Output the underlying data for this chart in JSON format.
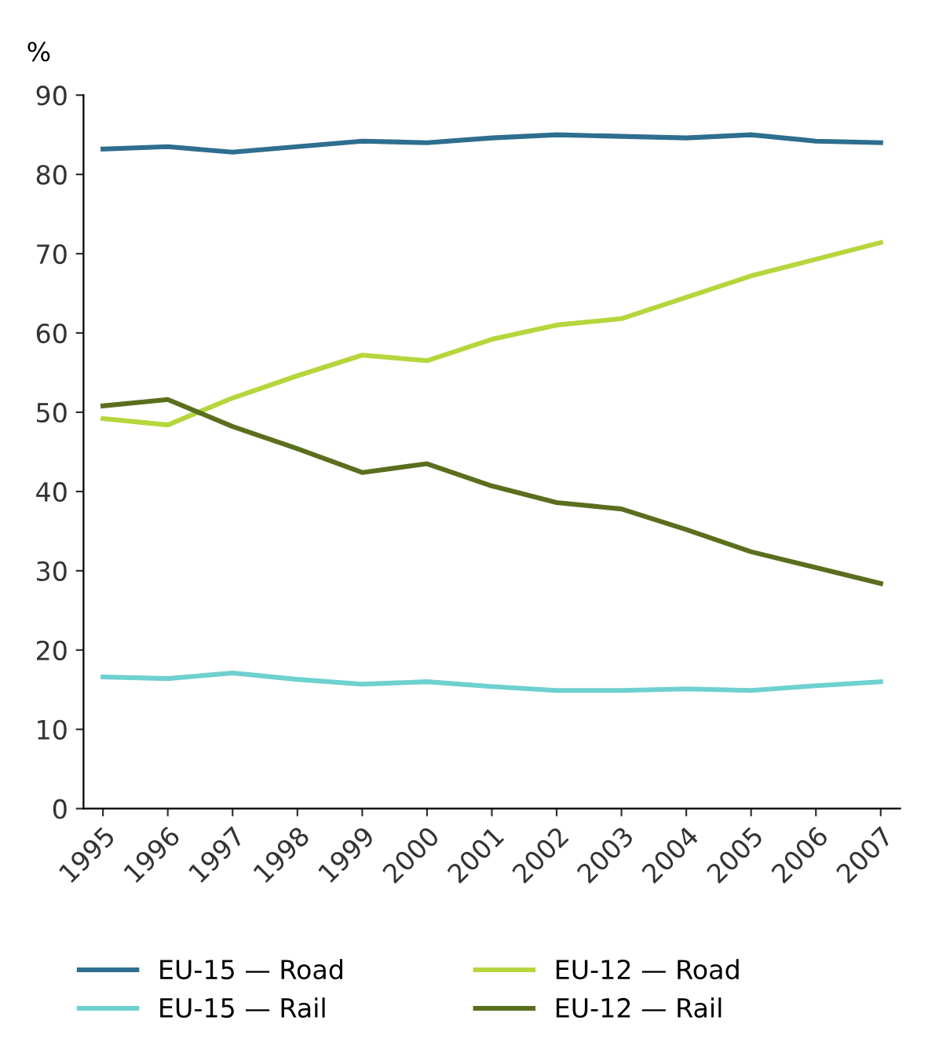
{
  "chart_data": {
    "type": "line",
    "ylabel": "%",
    "categories": [
      "1995",
      "1996",
      "1997",
      "1998",
      "1999",
      "2000",
      "2001",
      "2002",
      "2003",
      "2004",
      "2005",
      "2006",
      "2007"
    ],
    "series": [
      {
        "name": "EU-15 — Road",
        "color": "#2e6e8e",
        "values": [
          83.2,
          83.5,
          82.8,
          83.5,
          84.2,
          84.0,
          84.6,
          85.0,
          84.8,
          84.6,
          85.0,
          84.2,
          84.0
        ]
      },
      {
        "name": "EU-15 — Rail",
        "color": "#6fd0d0",
        "values": [
          16.6,
          16.4,
          17.1,
          16.3,
          15.7,
          16.0,
          15.4,
          14.9,
          14.9,
          15.1,
          14.9,
          15.5,
          16.0
        ]
      },
      {
        "name": "EU-12 — Road",
        "color": "#b5d63c",
        "values": [
          49.2,
          48.4,
          51.8,
          54.6,
          57.2,
          56.5,
          59.2,
          61.0,
          61.8,
          64.5,
          67.2,
          69.3,
          71.4
        ]
      },
      {
        "name": "EU-12 — Rail",
        "color": "#5a6e1e",
        "values": [
          50.8,
          51.6,
          48.2,
          45.4,
          42.4,
          43.5,
          40.7,
          38.6,
          37.8,
          35.2,
          32.4,
          30.4,
          28.4
        ]
      }
    ],
    "ylim": [
      0,
      90
    ],
    "yticks": [
      0,
      10,
      20,
      30,
      40,
      50,
      60,
      70,
      80,
      90
    ],
    "grid": false,
    "legend": "bottom",
    "marker": "none",
    "line_style": "solid"
  }
}
